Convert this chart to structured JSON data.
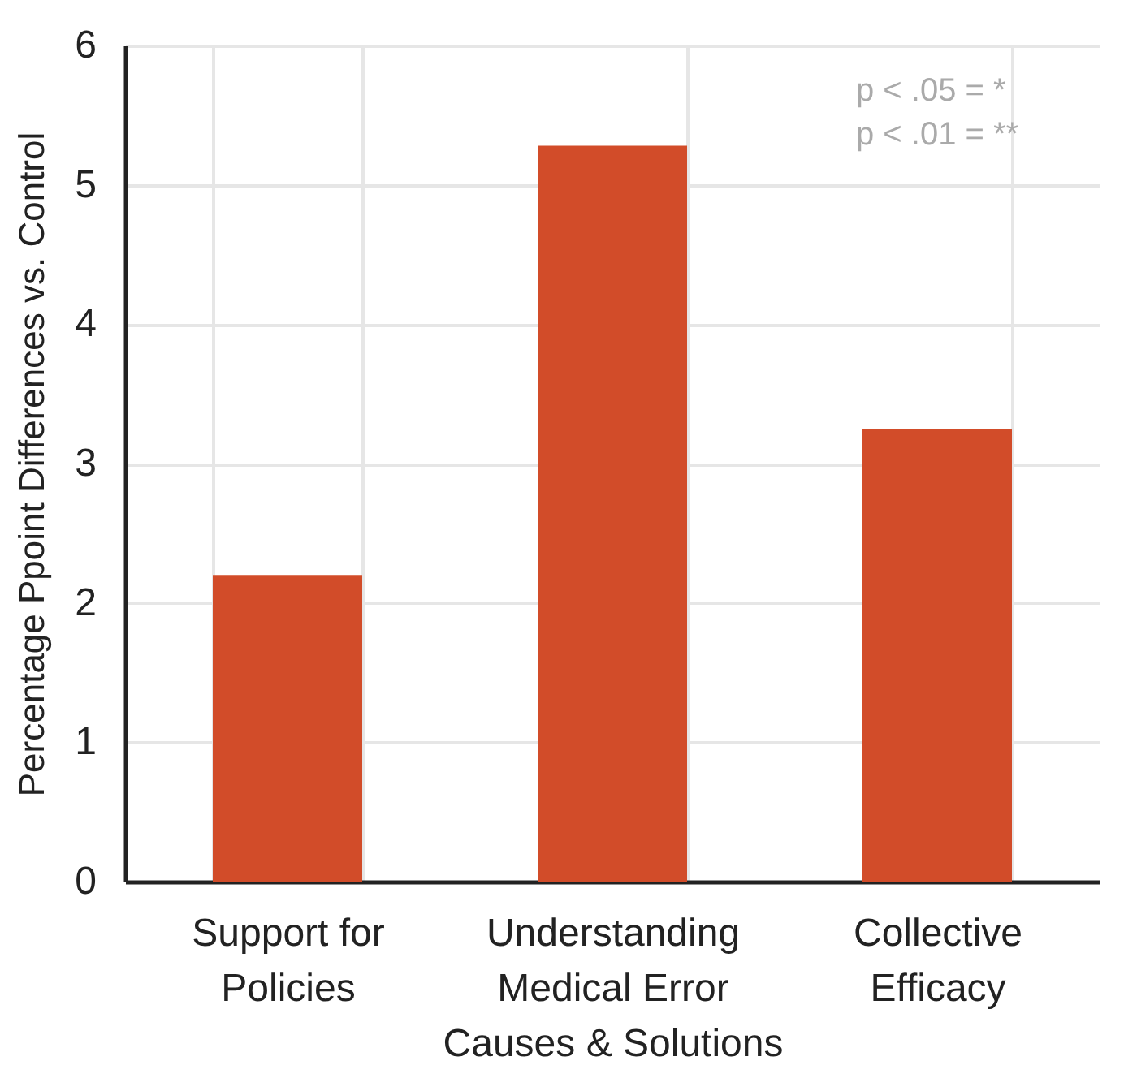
{
  "chart_data": {
    "type": "bar",
    "ylabel": "Percentage Ppoint Differences vs. Control",
    "categories": [
      "Support for Policies",
      "Understanding Medical Error Causes & Solutions",
      "Collective Efficacy"
    ],
    "values": [
      2.2,
      5.28,
      3.25
    ],
    "color": "#d24c29",
    "ylim": [
      0,
      6
    ],
    "yticks": [
      0,
      1,
      2,
      3,
      4,
      5,
      6
    ],
    "grid": true,
    "annotations": [
      "p < .05 = *",
      "p < .01 = **"
    ]
  }
}
